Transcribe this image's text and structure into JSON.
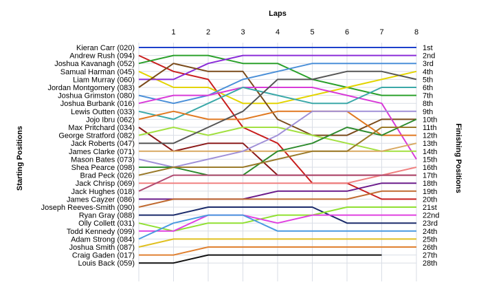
{
  "chart_data": {
    "type": "line",
    "title": "Laps",
    "ylabel_left": "Starting Positions",
    "ylabel_right": "Finishing Positions",
    "x": [
      0,
      1,
      2,
      3,
      4,
      5,
      6,
      7,
      8
    ],
    "x_tick_labels": [
      "1",
      "2",
      "3",
      "4",
      "5",
      "6",
      "7",
      "8"
    ],
    "y_range": [
      1,
      28
    ],
    "y_inverted": true,
    "grid": true,
    "finishing_labels": [
      "1st",
      "2nd",
      "3rd",
      "4th",
      "5th",
      "6th",
      "7th",
      "8th",
      "9th",
      "10th",
      "11th",
      "12th",
      "13th",
      "14th",
      "15th",
      "16th",
      "17th",
      "18th",
      "19th",
      "20th",
      "21st",
      "22nd",
      "23rd",
      "24th",
      "25th",
      "26th",
      "27th",
      "28th"
    ],
    "series": [
      {
        "name": "Kieran Carr (020)",
        "color": "#1c3fcb",
        "positions": [
          1,
          1,
          1,
          1,
          1,
          1,
          1,
          1,
          1
        ]
      },
      {
        "name": "Andrew Rush (094)",
        "color": "#c81e1e",
        "positions": [
          2,
          4,
          5,
          11,
          13,
          18,
          18,
          20,
          20
        ]
      },
      {
        "name": "Joshua Kavanagh (052)",
        "color": "#2aa02a",
        "positions": [
          3,
          2,
          2,
          3,
          3,
          5,
          6,
          7,
          7
        ]
      },
      {
        "name": "Samual Harman (045)",
        "color": "#e3d400",
        "positions": [
          4,
          6,
          6,
          8,
          8,
          7,
          6,
          5,
          4
        ]
      },
      {
        "name": "Liam Murray (060)",
        "color": "#8a2bd8",
        "positions": [
          5,
          5,
          3,
          2,
          2,
          2,
          2,
          2,
          2
        ]
      },
      {
        "name": "Jordan Montgomery (083)",
        "color": "#7a4a1a",
        "positions": [
          6,
          3,
          4,
          4,
          10,
          12,
          12,
          10,
          10
        ]
      },
      {
        "name": "Joshua Grimston (080)",
        "color": "#4a8fd8",
        "positions": [
          7,
          8,
          7,
          5,
          4,
          3,
          3,
          3,
          3
        ]
      },
      {
        "name": "Joshua Burbank (016)",
        "color": "#d83ad8",
        "positions": [
          8,
          7,
          7,
          6,
          6,
          6,
          7,
          8,
          15
        ]
      },
      {
        "name": "Lewis Outten (033)",
        "color": "#3aa8a8",
        "positions": [
          9,
          10,
          8,
          6,
          7,
          8,
          8,
          6,
          6
        ]
      },
      {
        "name": "Jojo Ibru (062)",
        "color": "#e07820",
        "positions": [
          10,
          9,
          10,
          10,
          9,
          9,
          9,
          12,
          12
        ]
      },
      {
        "name": "Max Pritchard (034)",
        "color": "#8b1a1a",
        "positions": [
          11,
          14,
          13,
          13,
          17,
          17,
          17,
          17,
          17
        ]
      },
      {
        "name": "George Stratford (082)",
        "color": "#a2e040",
        "positions": [
          12,
          11,
          12,
          11,
          11,
          12,
          13,
          14,
          14
        ]
      },
      {
        "name": "Jack Roberts (047)",
        "color": "#555555",
        "positions": [
          13,
          13,
          11,
          9,
          5,
          5,
          4,
          4,
          5
        ]
      },
      {
        "name": "James Clarke (071)",
        "color": "#d8a860",
        "positions": [
          14,
          14,
          14,
          14,
          14,
          14,
          14,
          14,
          13
        ]
      },
      {
        "name": "Mason Bates (073)",
        "color": "#a090d8",
        "positions": [
          15,
          16,
          15,
          14,
          12,
          9,
          9,
          9,
          9
        ]
      },
      {
        "name": "Shea Pearce (098)",
        "color": "#2e8b2e",
        "positions": [
          16,
          16,
          17,
          17,
          14,
          13,
          11,
          12,
          10
        ]
      },
      {
        "name": "Brad Peck (026)",
        "color": "#9a7a2a",
        "positions": [
          17,
          16,
          16,
          16,
          15,
          14,
          14,
          11,
          11
        ]
      },
      {
        "name": "Jack Chrisp (069)",
        "color": "#f08080",
        "positions": [
          18,
          18,
          18,
          18,
          18,
          18,
          18,
          17,
          16
        ]
      },
      {
        "name": "Jack Hughes (018)",
        "color": "#b04a70",
        "positions": [
          19,
          17,
          17,
          17,
          17,
          17,
          17,
          17,
          17
        ]
      },
      {
        "name": "James Cayzer (086)",
        "color": "#6a1a8a",
        "positions": [
          20,
          20,
          20,
          20,
          19,
          19,
          19,
          18,
          18
        ]
      },
      {
        "name": "Joseph Reeves-Smith (090)",
        "color": "#c06a30",
        "positions": [
          21,
          20,
          20,
          20,
          20,
          20,
          20,
          19,
          19
        ]
      },
      {
        "name": "Ryan Gray (088)",
        "color": "#1a2a6a",
        "positions": [
          22,
          22,
          21,
          21,
          21,
          21,
          23,
          23,
          23
        ]
      },
      {
        "name": "Olly Collett (031)",
        "color": "#90e030",
        "positions": [
          23,
          24,
          23,
          23,
          22,
          22,
          21,
          21,
          21
        ]
      },
      {
        "name": "Todd Kennedy (099)",
        "color": "#e040e0",
        "positions": [
          24,
          24,
          22,
          22,
          23,
          22,
          22,
          22,
          22
        ]
      },
      {
        "name": "Adam Strong (084)",
        "color": "#4a9ae0",
        "positions": [
          25,
          23,
          22,
          22,
          24,
          24,
          24,
          24,
          24
        ]
      },
      {
        "name": "Joshua Smith (087)",
        "color": "#e0c020",
        "positions": [
          26,
          25,
          25,
          25,
          25,
          25,
          25,
          25,
          25
        ]
      },
      {
        "name": "Craig Gaden (017)",
        "color": "#e08030",
        "positions": [
          27,
          27,
          26,
          26,
          26,
          26,
          26,
          26,
          26
        ]
      },
      {
        "name": "Louis Back (059)",
        "color": "#111111",
        "positions": [
          28,
          28,
          27,
          27,
          27,
          27,
          27,
          27
        ]
      }
    ]
  }
}
